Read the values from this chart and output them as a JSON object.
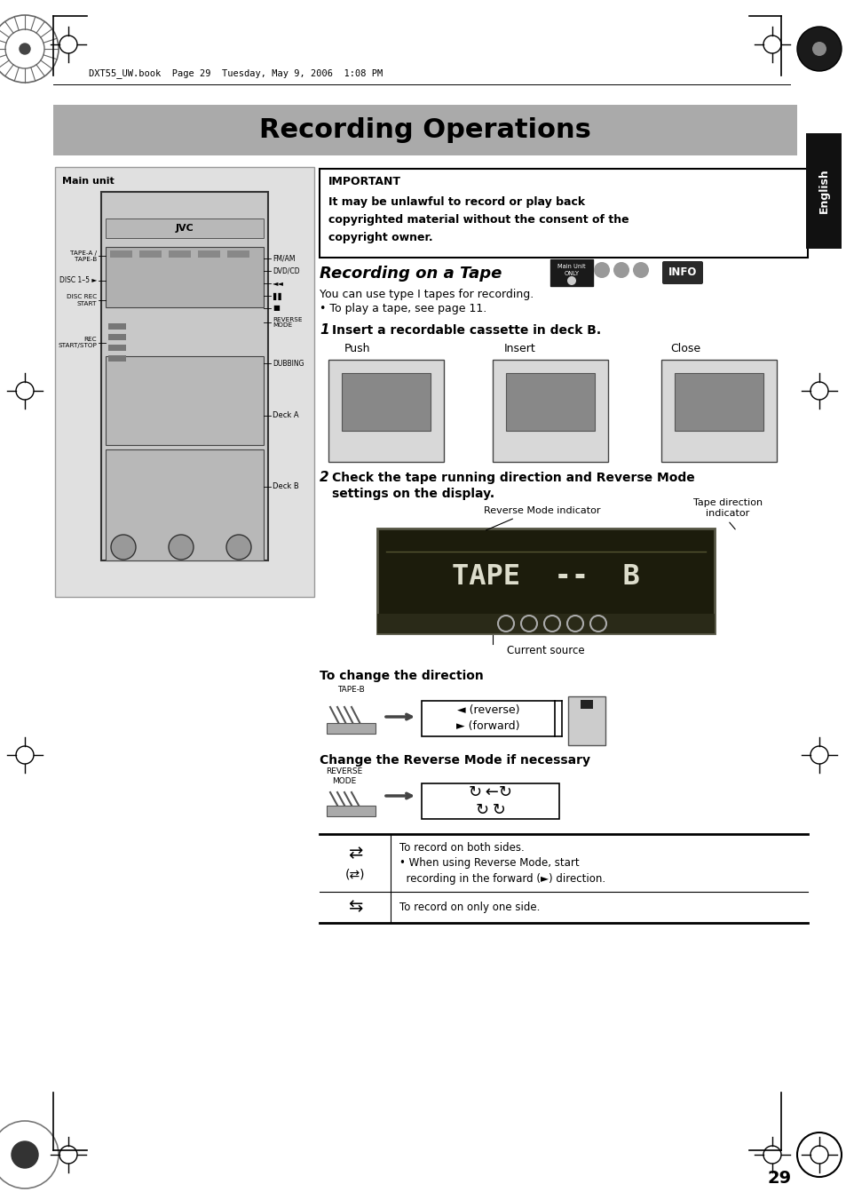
{
  "page_title": "Recording Operations",
  "header_text": "DXT55_UW.book  Page 29  Tuesday, May 9, 2006  1:08 PM",
  "english_tab": "English",
  "section_title": "Recording on a Tape",
  "important_title": "IMPORTANT",
  "important_text1": "It may be unlawful to record or play back",
  "important_text2": "copyrighted material without the consent of the",
  "important_text3": "copyright owner.",
  "body_text1": "You can use type I tapes for recording.",
  "body_text2": "• To play a tape, see page 11.",
  "step1_bold": "1",
  "step1_text": "Insert a recordable cassette in deck B.",
  "step2_bold": "2",
  "step2_text": "Check the tape running direction and Reverse Mode",
  "step2_text2": "settings on the display.",
  "push_label": "Push",
  "insert_label": "Insert",
  "close_label": "Close",
  "tape_dir_label": "Tape direction\nindicator",
  "rev_mode_label": "Reverse Mode indicator",
  "current_src_label": "Current source",
  "to_change_dir": "To change the direction",
  "change_rev_mode": "Change the Reverse Mode if necessary",
  "tape_b_label": "TAPE-B",
  "forward_label": "► (forward)",
  "reverse_label": "◄ (reverse)",
  "rev_mode_label2": "REVERSE\nMODE",
  "table_row1_col2a": "To record on both sides.",
  "table_row1_col2b": "• When using Reverse Mode, start",
  "table_row1_col2c": "  recording in the forward (►) direction.",
  "table_row2_col2": "To record on only one side.",
  "main_unit_label": "Main unit",
  "fm_am": "FM/AM",
  "dvd_cd": "DVD/CD",
  "tape_a_b": "TAPE-A /\nTAPE-B",
  "disc_1_5": "DISC 1–5 ►",
  "disc_rec": "DISC REC\nSTART",
  "rec_start": "REC\nSTART/STOP",
  "reverse_mode": "REVERSE\nMODE",
  "dubbing": "DUBBING",
  "deck_a": "Deck A",
  "deck_b": "Deck B",
  "page_number": "29",
  "bg_color": "#ffffff",
  "title_bg_color": "#aaaaaa",
  "english_tab_bg": "#111111",
  "english_tab_text": "#ffffff",
  "info_bg": "#2a2a2a",
  "info_text": "#ffffff",
  "main_unit_bg": "#cccccc",
  "display_bg": "#1a1a0a"
}
